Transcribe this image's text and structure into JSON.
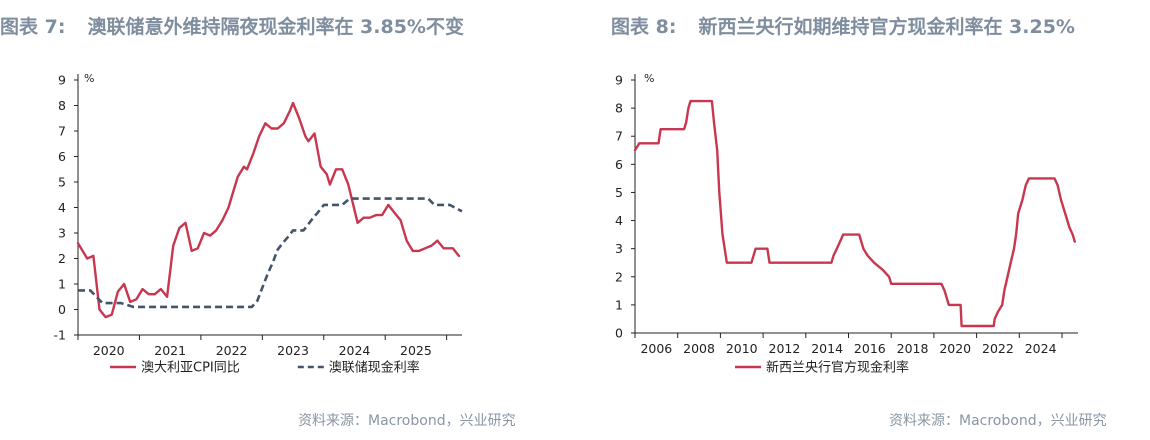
{
  "charts": [
    {
      "fig_label": "图表 7:",
      "title": "澳联储意外维持隔夜现金利率在 3.85%不变",
      "source": "资料来源：Macrobond，兴业研究"
    },
    {
      "fig_label": "图表 8:",
      "title": "新西兰央行如期维持官方现金利率在 3.25%",
      "source": "资料来源：Macrobond，兴业研究"
    }
  ],
  "chart_data": [
    {
      "type": "line",
      "title": "澳联储意外维持隔夜现金利率在 3.85%不变",
      "unit_label": "%",
      "ylim": [
        -1,
        9
      ],
      "yticks": [
        -1,
        0,
        1,
        2,
        3,
        4,
        5,
        6,
        7,
        8,
        9
      ],
      "xlim": [
        2019.5,
        2025.75
      ],
      "xtick_labels": [
        "2020",
        "2021",
        "2022",
        "2023",
        "2024",
        "2025"
      ],
      "xtick_label_pos": [
        2020,
        2021,
        2022,
        2023,
        2024,
        2025
      ],
      "xtick_marks": [
        2019.5,
        2020.5,
        2021.5,
        2022.5,
        2023.5,
        2024.5,
        2025.5
      ],
      "legend_position": "bottom",
      "series": [
        {
          "name": "澳大利亚CPI同比",
          "color": "#c8374f",
          "style": "solid",
          "points": [
            [
              2019.5,
              2.6
            ],
            [
              2019.65,
              2.0
            ],
            [
              2019.75,
              2.1
            ],
            [
              2019.85,
              0.0
            ],
            [
              2019.95,
              -0.3
            ],
            [
              2020.05,
              -0.2
            ],
            [
              2020.15,
              0.7
            ],
            [
              2020.25,
              1.0
            ],
            [
              2020.35,
              0.3
            ],
            [
              2020.45,
              0.4
            ],
            [
              2020.55,
              0.8
            ],
            [
              2020.65,
              0.6
            ],
            [
              2020.75,
              0.6
            ],
            [
              2020.85,
              0.8
            ],
            [
              2020.95,
              0.5
            ],
            [
              2021.05,
              2.5
            ],
            [
              2021.15,
              3.2
            ],
            [
              2021.25,
              3.4
            ],
            [
              2021.35,
              2.3
            ],
            [
              2021.45,
              2.4
            ],
            [
              2021.55,
              3.0
            ],
            [
              2021.65,
              2.9
            ],
            [
              2021.75,
              3.1
            ],
            [
              2021.85,
              3.5
            ],
            [
              2021.95,
              4.0
            ],
            [
              2022.1,
              5.2
            ],
            [
              2022.2,
              5.6
            ],
            [
              2022.25,
              5.5
            ],
            [
              2022.35,
              6.1
            ],
            [
              2022.45,
              6.8
            ],
            [
              2022.55,
              7.3
            ],
            [
              2022.65,
              7.1
            ],
            [
              2022.75,
              7.1
            ],
            [
              2022.85,
              7.3
            ],
            [
              2022.95,
              7.8
            ],
            [
              2023.0,
              8.1
            ],
            [
              2023.1,
              7.5
            ],
            [
              2023.2,
              6.8
            ],
            [
              2023.25,
              6.6
            ],
            [
              2023.35,
              6.9
            ],
            [
              2023.45,
              5.6
            ],
            [
              2023.55,
              5.3
            ],
            [
              2023.6,
              4.9
            ],
            [
              2023.7,
              5.5
            ],
            [
              2023.8,
              5.5
            ],
            [
              2023.9,
              4.9
            ],
            [
              2023.95,
              4.4
            ],
            [
              2024.05,
              3.4
            ],
            [
              2024.15,
              3.6
            ],
            [
              2024.25,
              3.6
            ],
            [
              2024.35,
              3.7
            ],
            [
              2024.45,
              3.7
            ],
            [
              2024.55,
              4.1
            ],
            [
              2024.65,
              3.8
            ],
            [
              2024.75,
              3.5
            ],
            [
              2024.85,
              2.7
            ],
            [
              2024.95,
              2.3
            ],
            [
              2025.05,
              2.3
            ],
            [
              2025.15,
              2.4
            ],
            [
              2025.25,
              2.5
            ],
            [
              2025.35,
              2.7
            ],
            [
              2025.45,
              2.4
            ],
            [
              2025.55,
              2.4
            ],
            [
              2025.6,
              2.4
            ],
            [
              2025.7,
              2.1
            ]
          ]
        },
        {
          "name": "澳联储现金利率",
          "color": "#44546a",
          "style": "dashed",
          "points": [
            [
              2019.5,
              0.75
            ],
            [
              2019.7,
              0.75
            ],
            [
              2019.8,
              0.5
            ],
            [
              2019.9,
              0.25
            ],
            [
              2020.2,
              0.25
            ],
            [
              2020.4,
              0.1
            ],
            [
              2021.6,
              0.1
            ],
            [
              2022.33,
              0.1
            ],
            [
              2022.42,
              0.35
            ],
            [
              2022.5,
              0.85
            ],
            [
              2022.58,
              1.35
            ],
            [
              2022.67,
              1.85
            ],
            [
              2022.75,
              2.35
            ],
            [
              2022.83,
              2.6
            ],
            [
              2022.92,
              2.85
            ],
            [
              2023.0,
              3.1
            ],
            [
              2023.17,
              3.1
            ],
            [
              2023.25,
              3.35
            ],
            [
              2023.33,
              3.6
            ],
            [
              2023.42,
              3.85
            ],
            [
              2023.5,
              4.1
            ],
            [
              2023.8,
              4.1
            ],
            [
              2023.92,
              4.35
            ],
            [
              2025.1,
              4.35
            ],
            [
              2025.2,
              4.35
            ],
            [
              2025.3,
              4.1
            ],
            [
              2025.55,
              4.1
            ],
            [
              2025.75,
              3.85
            ]
          ]
        }
      ]
    },
    {
      "type": "line",
      "title": "新西兰央行如期维持官方现金利率在 3.25%",
      "unit_label": "%",
      "ylim": [
        0,
        9
      ],
      "yticks": [
        0,
        1,
        2,
        3,
        4,
        5,
        6,
        7,
        8,
        9
      ],
      "xlim": [
        2005,
        2025.75
      ],
      "xtick_labels": [
        "2006",
        "2008",
        "2010",
        "2012",
        "2014",
        "2016",
        "2018",
        "2020",
        "2022",
        "2024"
      ],
      "xtick_label_pos": [
        2006,
        2008,
        2010,
        2012,
        2014,
        2016,
        2018,
        2020,
        2022,
        2024
      ],
      "xtick_marks": [
        2005,
        2007,
        2009,
        2011,
        2013,
        2015,
        2017,
        2019,
        2021,
        2023,
        2025
      ],
      "legend_position": "bottom",
      "series": [
        {
          "name": "新西兰央行官方现金利率",
          "color": "#c8374f",
          "style": "solid",
          "points": [
            [
              2005.0,
              6.5
            ],
            [
              2005.2,
              6.75
            ],
            [
              2006.1,
              6.75
            ],
            [
              2006.2,
              7.25
            ],
            [
              2007.3,
              7.25
            ],
            [
              2007.4,
              7.5
            ],
            [
              2007.5,
              8.0
            ],
            [
              2007.6,
              8.25
            ],
            [
              2008.6,
              8.25
            ],
            [
              2008.7,
              7.5
            ],
            [
              2008.85,
              6.5
            ],
            [
              2008.95,
              5.0
            ],
            [
              2009.1,
              3.5
            ],
            [
              2009.2,
              3.0
            ],
            [
              2009.3,
              2.5
            ],
            [
              2010.45,
              2.5
            ],
            [
              2010.55,
              2.75
            ],
            [
              2010.65,
              3.0
            ],
            [
              2011.2,
              3.0
            ],
            [
              2011.3,
              2.5
            ],
            [
              2014.2,
              2.5
            ],
            [
              2014.3,
              2.75
            ],
            [
              2014.45,
              3.0
            ],
            [
              2014.6,
              3.25
            ],
            [
              2014.75,
              3.5
            ],
            [
              2015.5,
              3.5
            ],
            [
              2015.6,
              3.25
            ],
            [
              2015.7,
              3.0
            ],
            [
              2015.9,
              2.75
            ],
            [
              2016.2,
              2.5
            ],
            [
              2016.6,
              2.25
            ],
            [
              2016.9,
              2.0
            ],
            [
              2017.0,
              1.75
            ],
            [
              2019.35,
              1.75
            ],
            [
              2019.5,
              1.5
            ],
            [
              2019.7,
              1.0
            ],
            [
              2020.25,
              1.0
            ],
            [
              2020.3,
              0.25
            ],
            [
              2021.8,
              0.25
            ],
            [
              2021.85,
              0.5
            ],
            [
              2022.0,
              0.75
            ],
            [
              2022.2,
              1.0
            ],
            [
              2022.3,
              1.5
            ],
            [
              2022.45,
              2.0
            ],
            [
              2022.6,
              2.5
            ],
            [
              2022.75,
              3.0
            ],
            [
              2022.85,
              3.5
            ],
            [
              2022.95,
              4.25
            ],
            [
              2023.15,
              4.75
            ],
            [
              2023.3,
              5.25
            ],
            [
              2023.45,
              5.5
            ],
            [
              2024.65,
              5.5
            ],
            [
              2024.8,
              5.25
            ],
            [
              2024.95,
              4.75
            ],
            [
              2025.15,
              4.25
            ],
            [
              2025.35,
              3.75
            ],
            [
              2025.5,
              3.5
            ],
            [
              2025.6,
              3.25
            ]
          ]
        }
      ]
    }
  ]
}
